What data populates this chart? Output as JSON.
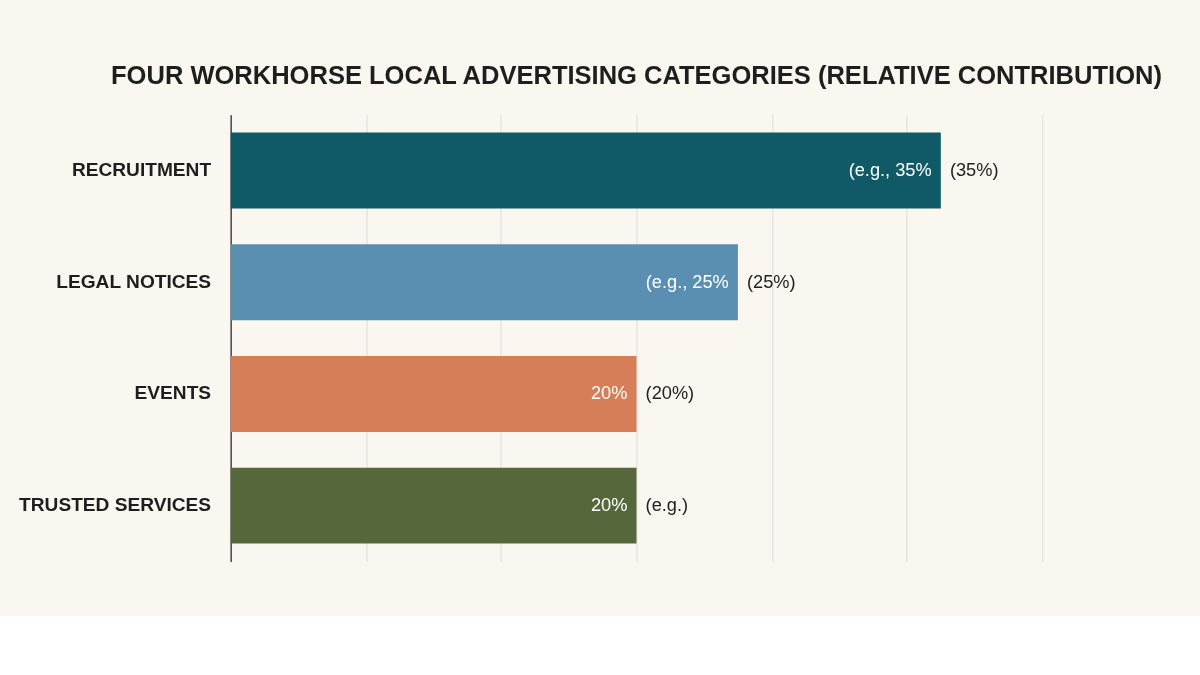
{
  "chart_data": {
    "type": "bar",
    "orientation": "horizontal",
    "title": "FOUR WORKHORSE LOCAL ADVERTISING CATEGORIES (RELATIVE CONTRIBUTION)",
    "categories": [
      "RECRUITMENT",
      "LEGAL NOTICES",
      "EVENTS",
      "TRUSTED SERVICES"
    ],
    "values": [
      35,
      25,
      20,
      20
    ],
    "colors": [
      "#0f5a66",
      "#5a8fb1",
      "#d67e58",
      "#56683b"
    ],
    "value_labels": [
      "(e.g., 35%",
      "(e.g., 25%",
      "20%",
      "20%"
    ],
    "annotations": [
      {
        "text": "(35%)",
        "x": 35,
        "y": "RECRUITMENT"
      },
      {
        "text": "(25%)",
        "x": 25,
        "y": "LEGAL NOTICES"
      },
      {
        "text": "(20%)",
        "x": 20,
        "y": "EVENTS"
      },
      {
        "text": "(e.g.)",
        "x": 20,
        "y": "TRUSTED SERVICES"
      }
    ],
    "xlim": [
      0,
      40
    ],
    "xticks": [
      {
        "value": 6.7,
        "label": null
      },
      {
        "value": 13.3,
        "label": null
      },
      {
        "value": 20,
        "label": null
      },
      {
        "value": 26.7,
        "label": null
      },
      {
        "value": 33.3,
        "label": null
      },
      {
        "value": 40,
        "label": null
      }
    ],
    "grid": "x",
    "tick_labels": "y"
  }
}
